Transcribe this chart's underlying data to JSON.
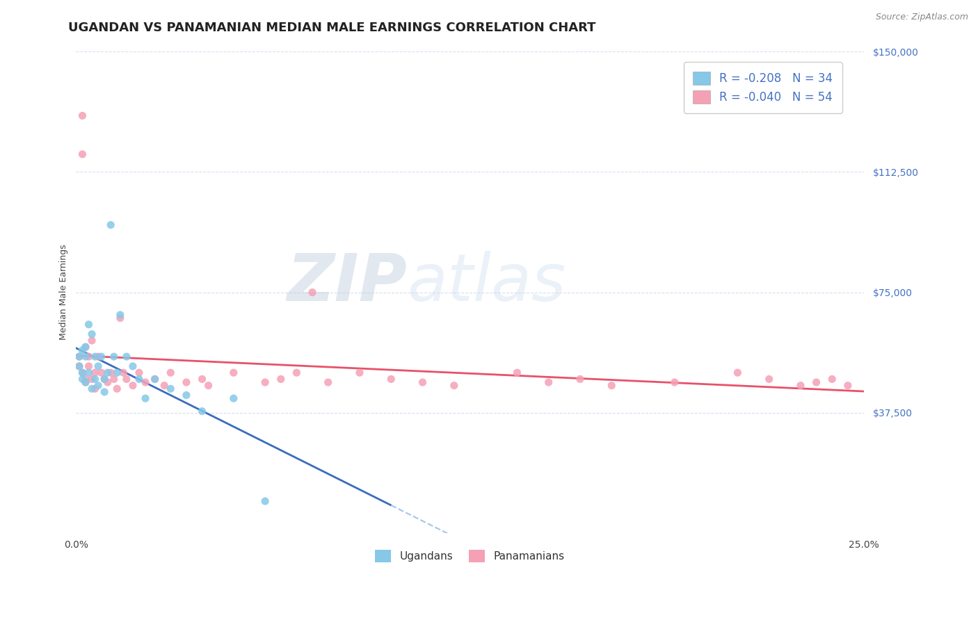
{
  "title": "UGANDAN VS PANAMANIAN MEDIAN MALE EARNINGS CORRELATION CHART",
  "source": "Source: ZipAtlas.com",
  "ylabel": "Median Male Earnings",
  "x_min": 0.0,
  "x_max": 0.25,
  "y_min": 0,
  "y_max": 150000,
  "yticks": [
    0,
    37500,
    75000,
    112500,
    150000
  ],
  "ytick_labels": [
    "",
    "$37,500",
    "$75,000",
    "$112,500",
    "$150,000"
  ],
  "ugandan_x": [
    0.001,
    0.001,
    0.002,
    0.002,
    0.002,
    0.003,
    0.003,
    0.003,
    0.004,
    0.004,
    0.005,
    0.005,
    0.006,
    0.006,
    0.007,
    0.007,
    0.008,
    0.009,
    0.009,
    0.01,
    0.011,
    0.012,
    0.013,
    0.014,
    0.016,
    0.018,
    0.02,
    0.022,
    0.025,
    0.03,
    0.035,
    0.04,
    0.05,
    0.06
  ],
  "ugandan_y": [
    55000,
    52000,
    57000,
    50000,
    48000,
    58000,
    55000,
    47000,
    65000,
    50000,
    62000,
    45000,
    55000,
    48000,
    52000,
    46000,
    55000,
    44000,
    48000,
    50000,
    96000,
    55000,
    50000,
    68000,
    55000,
    52000,
    48000,
    42000,
    48000,
    45000,
    43000,
    38000,
    42000,
    10000
  ],
  "panamanian_x": [
    0.001,
    0.001,
    0.002,
    0.002,
    0.002,
    0.003,
    0.003,
    0.003,
    0.004,
    0.004,
    0.005,
    0.005,
    0.006,
    0.006,
    0.007,
    0.008,
    0.009,
    0.01,
    0.011,
    0.012,
    0.013,
    0.014,
    0.015,
    0.016,
    0.018,
    0.02,
    0.022,
    0.025,
    0.028,
    0.03,
    0.035,
    0.04,
    0.042,
    0.05,
    0.06,
    0.065,
    0.07,
    0.075,
    0.08,
    0.09,
    0.1,
    0.11,
    0.12,
    0.14,
    0.15,
    0.16,
    0.17,
    0.19,
    0.21,
    0.22,
    0.23,
    0.235,
    0.24,
    0.245
  ],
  "panamanian_y": [
    55000,
    52000,
    130000,
    118000,
    50000,
    48000,
    58000,
    47000,
    52000,
    55000,
    48000,
    60000,
    50000,
    45000,
    55000,
    50000,
    48000,
    47000,
    50000,
    48000,
    45000,
    67000,
    50000,
    48000,
    46000,
    50000,
    47000,
    48000,
    46000,
    50000,
    47000,
    48000,
    46000,
    50000,
    47000,
    48000,
    50000,
    75000,
    47000,
    50000,
    48000,
    47000,
    46000,
    50000,
    47000,
    48000,
    46000,
    47000,
    50000,
    48000,
    46000,
    47000,
    48000,
    46000
  ],
  "ugandan_color": "#85c8e8",
  "panamanian_color": "#f5a0b5",
  "ugandan_line_color": "#3a6bbf",
  "panamanian_line_color": "#e8516a",
  "dashed_line_color": "#a8c8e8",
  "legend_R_ugandan": "-0.208",
  "legend_N_ugandan": "34",
  "legend_R_panamanian": "-0.040",
  "legend_N_panamanian": "54",
  "watermark_zip": "ZIP",
  "watermark_atlas": "atlas",
  "axis_label_color": "#4472c4",
  "grid_color": "#d8dff0",
  "background_color": "#ffffff",
  "title_fontsize": 13,
  "source_fontsize": 9,
  "tick_fontsize": 10,
  "legend_fontsize": 12,
  "ylabel_fontsize": 9,
  "ugandan_line_x_end": 0.1,
  "dashed_line_x_start": 0.1
}
